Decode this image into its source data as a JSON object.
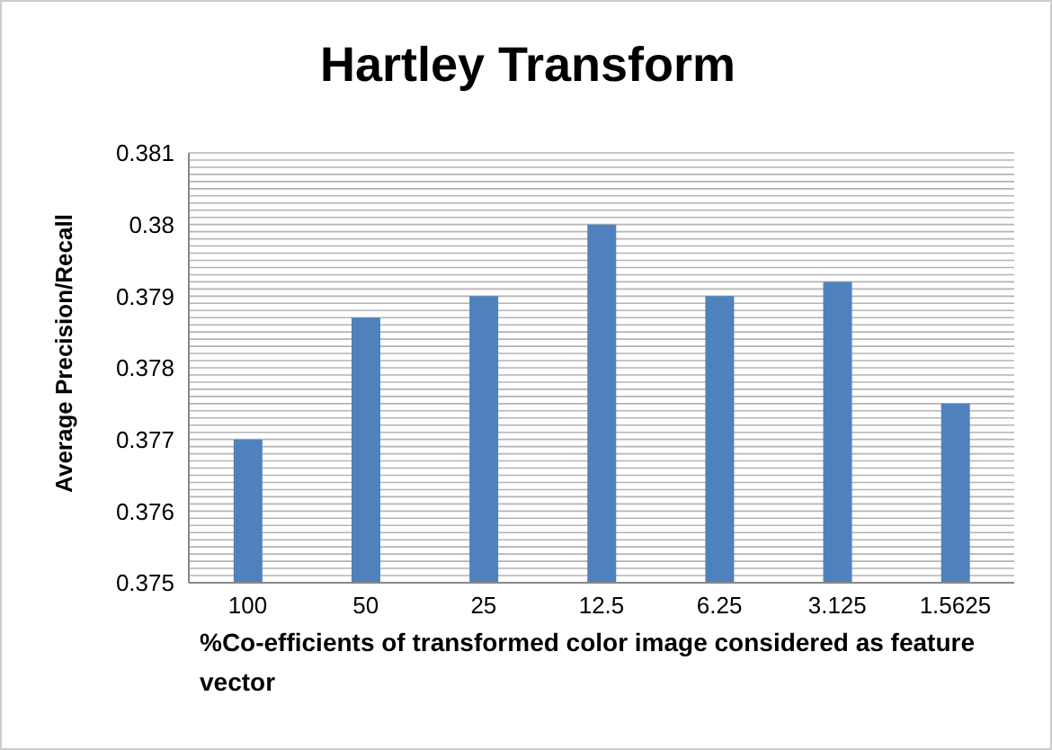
{
  "chart_data": {
    "type": "bar",
    "title": "Hartley Transform",
    "xlabel": "%Co-efficients of transformed color image considered as feature vector",
    "ylabel": "Average Precision/Recall",
    "categories": [
      "100",
      "50",
      "25",
      "12.5",
      "6.25",
      "3.125",
      "1.5625"
    ],
    "values": [
      0.377,
      0.3787,
      0.379,
      0.38,
      0.379,
      0.3792,
      0.3775
    ],
    "color": "#4f81bd",
    "ylim": [
      0.375,
      0.381
    ],
    "yticks": [
      0.375,
      {
        "value": 0.3751,
        "label": null
      },
      {
        "value": 0.3752,
        "label": null
      },
      {
        "value": 0.3753,
        "label": null
      },
      {
        "value": 0.3754,
        "label": null
      },
      {
        "value": 0.3755,
        "label": null
      },
      {
        "value": 0.3756,
        "label": null
      },
      {
        "value": 0.3757,
        "label": null
      },
      {
        "value": 0.3758,
        "label": null
      },
      {
        "value": 0.3759,
        "label": null
      },
      0.376,
      {
        "value": 0.3761,
        "label": null
      },
      {
        "value": 0.3762,
        "label": null
      },
      {
        "value": 0.3763,
        "label": null
      },
      {
        "value": 0.3764,
        "label": null
      },
      {
        "value": 0.3765,
        "label": null
      },
      {
        "value": 0.3766,
        "label": null
      },
      {
        "value": 0.3767,
        "label": null
      },
      {
        "value": 0.3768,
        "label": null
      },
      {
        "value": 0.3769,
        "label": null
      },
      0.377,
      {
        "value": 0.3771,
        "label": null
      },
      {
        "value": 0.3772,
        "label": null
      },
      {
        "value": 0.3773,
        "label": null
      },
      {
        "value": 0.3774,
        "label": null
      },
      {
        "value": 0.3775,
        "label": null
      },
      {
        "value": 0.3776,
        "label": null
      },
      {
        "value": 0.3777,
        "label": null
      },
      {
        "value": 0.3778,
        "label": null
      },
      {
        "value": 0.3779,
        "label": null
      },
      0.378,
      {
        "value": 0.3781,
        "label": null
      },
      {
        "value": 0.3782,
        "label": null
      },
      {
        "value": 0.3783,
        "label": null
      },
      {
        "value": 0.3784,
        "label": null
      },
      {
        "value": 0.3785,
        "label": null
      },
      {
        "value": 0.3786,
        "label": null
      },
      {
        "value": 0.3787,
        "label": null
      },
      {
        "value": 0.3788,
        "label": null
      },
      {
        "value": 0.3789,
        "label": null
      },
      0.379,
      {
        "value": 0.3791,
        "label": null
      },
      {
        "value": 0.3792,
        "label": null
      },
      {
        "value": 0.3793,
        "label": null
      },
      {
        "value": 0.3794,
        "label": null
      },
      {
        "value": 0.3795,
        "label": null
      },
      {
        "value": 0.3796,
        "label": null
      },
      {
        "value": 0.3797,
        "label": null
      },
      {
        "value": 0.3798,
        "label": null
      },
      {
        "value": 0.3799,
        "label": null
      },
      0.38,
      {
        "value": 0.3801,
        "label": null
      },
      {
        "value": 0.3802,
        "label": null
      },
      {
        "value": 0.3803,
        "label": null
      },
      {
        "value": 0.3804,
        "label": null
      },
      {
        "value": 0.3805,
        "label": null
      },
      {
        "value": 0.3806,
        "label": null
      },
      {
        "value": 0.3807,
        "label": null
      },
      {
        "value": 0.3808,
        "label": null
      },
      {
        "value": 0.3809,
        "label": null
      },
      0.381
    ],
    "grid": "y"
  }
}
